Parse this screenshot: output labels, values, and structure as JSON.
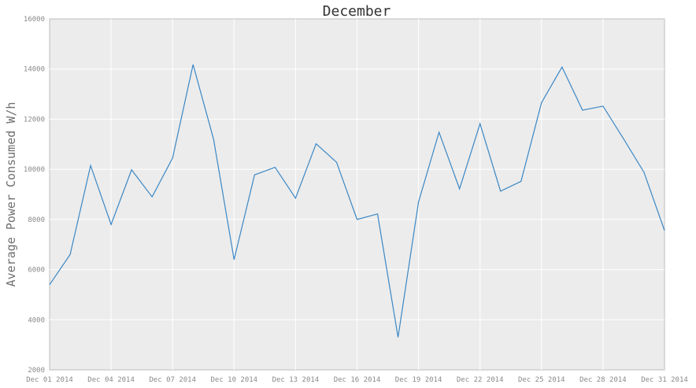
{
  "chart_data": {
    "type": "line",
    "title": "December",
    "xlabel": "",
    "ylabel": "Average Power Consumed W/h",
    "ylim": [
      2000,
      16000
    ],
    "yticks": [
      2000,
      4000,
      6000,
      8000,
      10000,
      12000,
      14000,
      16000
    ],
    "xlim": [
      "2014-12-01",
      "2014-12-31"
    ],
    "xticks": [
      {
        "date": "2014-12-01",
        "label": "Dec 01 2014"
      },
      {
        "date": "2014-12-04",
        "label": "Dec 04 2014"
      },
      {
        "date": "2014-12-07",
        "label": "Dec 07 2014"
      },
      {
        "date": "2014-12-10",
        "label": "Dec 10 2014"
      },
      {
        "date": "2014-12-13",
        "label": "Dec 13 2014"
      },
      {
        "date": "2014-12-16",
        "label": "Dec 16 2014"
      },
      {
        "date": "2014-12-19",
        "label": "Dec 19 2014"
      },
      {
        "date": "2014-12-22",
        "label": "Dec 22 2014"
      },
      {
        "date": "2014-12-25",
        "label": "Dec 25 2014"
      },
      {
        "date": "2014-12-28",
        "label": "Dec 28 2014"
      },
      {
        "date": "2014-12-31",
        "label": "Dec 31 2014"
      }
    ],
    "grid": true,
    "line_color": "#3a87c5",
    "series": [
      {
        "x": [
          "2014-12-01",
          "2014-12-02",
          "2014-12-03",
          "2014-12-04",
          "2014-12-05",
          "2014-12-06",
          "2014-12-07",
          "2014-12-08",
          "2014-12-09",
          "2014-12-10",
          "2014-12-11",
          "2014-12-12",
          "2014-12-13",
          "2014-12-14",
          "2014-12-15",
          "2014-12-16",
          "2014-12-17",
          "2014-12-18",
          "2014-12-19",
          "2014-12-20",
          "2014-12-21",
          "2014-12-22",
          "2014-12-23",
          "2014-12-24",
          "2014-12-25",
          "2014-12-26",
          "2014-12-27",
          "2014-12-28",
          "2014-12-29",
          "2014-12-30",
          "2014-12-31"
        ],
        "values": [
          5400,
          6600,
          10150,
          7800,
          9980,
          8900,
          10450,
          14180,
          11200,
          6400,
          9780,
          10080,
          8850,
          11020,
          10280,
          8000,
          8220,
          3300,
          8700,
          11480,
          9220,
          11820,
          9130,
          9520,
          12660,
          14080,
          12360,
          12520,
          11220,
          9880,
          7560
        ]
      }
    ]
  }
}
